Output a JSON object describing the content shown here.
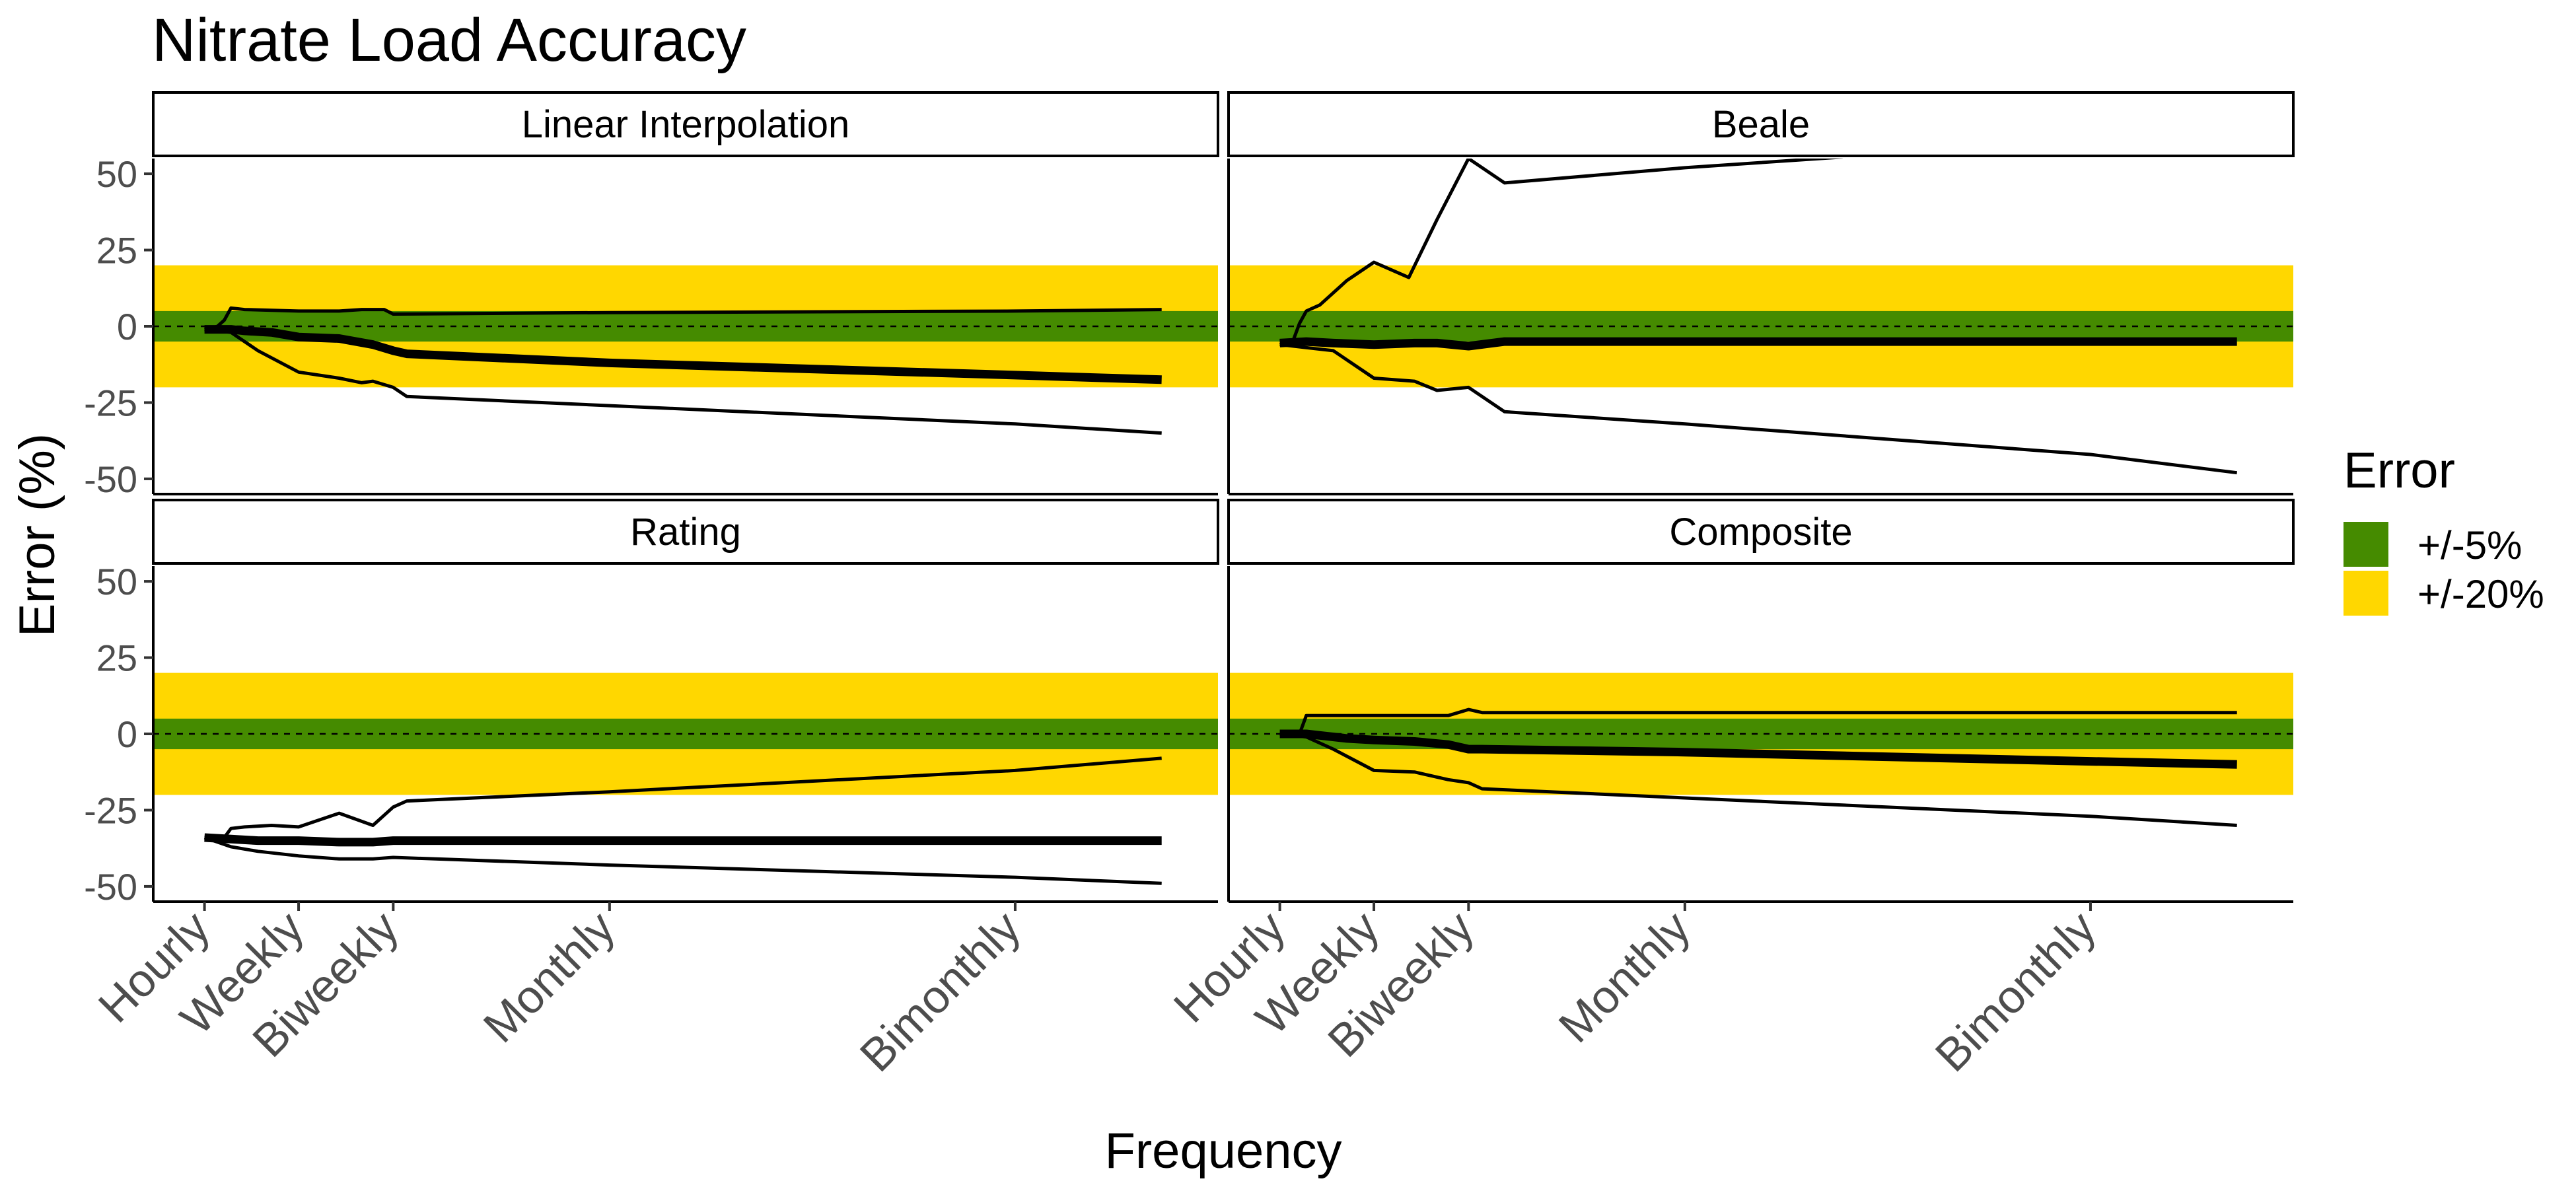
{
  "title": "Nitrate Load Accuracy",
  "xlabel": "Frequency",
  "ylabel": "Error (%)",
  "legend": {
    "title": "Error",
    "items": [
      {
        "label": "+/-5%",
        "color": "#458B00"
      },
      {
        "label": "+/-20%",
        "color": "#FFD700"
      }
    ]
  },
  "chart_data": {
    "type": "line",
    "facets": [
      "Linear Interpolation",
      "Beale",
      "Rating",
      "Composite"
    ],
    "x_ticks": [
      {
        "label": "Hourly",
        "hours": 1
      },
      {
        "label": "Weekly",
        "hours": 168
      },
      {
        "label": "Biweekly",
        "hours": 336
      },
      {
        "label": "Monthly",
        "hours": 720
      },
      {
        "label": "Bimonthly",
        "hours": 1440
      }
    ],
    "xlim": [
      -90,
      1800
    ],
    "ylim": [
      -55,
      55
    ],
    "y_ticks": [
      -50,
      -25,
      0,
      25,
      50
    ],
    "bands": [
      {
        "name": "+/-20%",
        "lower": -20,
        "upper": 20,
        "color": "#FFD700"
      },
      {
        "name": "+/-5%",
        "lower": -5,
        "upper": 5,
        "color": "#458B00"
      }
    ],
    "reference_line": 0,
    "panels": [
      {
        "facet": "Linear Interpolation",
        "series": [
          {
            "role": "upper",
            "points": [
              [
                1,
                -1
              ],
              [
                24,
                0
              ],
              [
                36,
                2
              ],
              [
                48,
                6
              ],
              [
                72,
                5.5
              ],
              [
                168,
                5
              ],
              [
                240,
                5
              ],
              [
                280,
                5.5
              ],
              [
                320,
                5.5
              ],
              [
                336,
                4
              ],
              [
                720,
                4.5
              ],
              [
                1440,
                5
              ],
              [
                1700,
                5.5
              ]
            ]
          },
          {
            "role": "median",
            "points": [
              [
                1,
                -1
              ],
              [
                48,
                -1
              ],
              [
                72,
                -1.5
              ],
              [
                120,
                -2
              ],
              [
                168,
                -3.5
              ],
              [
                240,
                -4
              ],
              [
                300,
                -6
              ],
              [
                336,
                -8
              ],
              [
                360,
                -9
              ],
              [
                720,
                -12
              ],
              [
                1440,
                -16
              ],
              [
                1700,
                -17.5
              ]
            ]
          },
          {
            "role": "lower",
            "points": [
              [
                1,
                -1
              ],
              [
                48,
                -2
              ],
              [
                96,
                -8
              ],
              [
                168,
                -15
              ],
              [
                240,
                -17
              ],
              [
                280,
                -18.5
              ],
              [
                300,
                -18
              ],
              [
                336,
                -20
              ],
              [
                360,
                -23
              ],
              [
                720,
                -26
              ],
              [
                1440,
                -32
              ],
              [
                1700,
                -35
              ]
            ]
          }
        ]
      },
      {
        "facet": "Beale",
        "series": [
          {
            "role": "upper",
            "points": [
              [
                1,
                -6
              ],
              [
                24,
                -5
              ],
              [
                36,
                1
              ],
              [
                48,
                5
              ],
              [
                72,
                7
              ],
              [
                120,
                15
              ],
              [
                168,
                21
              ],
              [
                230,
                16
              ],
              [
                280,
                35
              ],
              [
                336,
                55
              ],
              [
                400,
                47
              ],
              [
                720,
                52
              ],
              [
                1000,
                55.5
              ]
            ]
          },
          {
            "role": "median",
            "points": [
              [
                1,
                -5.5
              ],
              [
                48,
                -5
              ],
              [
                96,
                -5.5
              ],
              [
                168,
                -6
              ],
              [
                240,
                -5.5
              ],
              [
                280,
                -5.5
              ],
              [
                336,
                -6.5
              ],
              [
                400,
                -5
              ],
              [
                720,
                -5
              ],
              [
                1440,
                -5
              ],
              [
                1700,
                -5
              ]
            ]
          },
          {
            "role": "lower",
            "points": [
              [
                1,
                -6
              ],
              [
                48,
                -7
              ],
              [
                96,
                -8
              ],
              [
                168,
                -17
              ],
              [
                240,
                -18
              ],
              [
                280,
                -21
              ],
              [
                336,
                -20
              ],
              [
                400,
                -28
              ],
              [
                720,
                -32
              ],
              [
                1440,
                -42
              ],
              [
                1700,
                -48
              ]
            ]
          }
        ]
      },
      {
        "facet": "Rating",
        "series": [
          {
            "role": "upper",
            "points": [
              [
                1,
                -34
              ],
              [
                36,
                -34
              ],
              [
                48,
                -31
              ],
              [
                72,
                -30.5
              ],
              [
                120,
                -30
              ],
              [
                168,
                -30.5
              ],
              [
                240,
                -26
              ],
              [
                300,
                -30
              ],
              [
                336,
                -24
              ],
              [
                360,
                -22
              ],
              [
                720,
                -19
              ],
              [
                1440,
                -12
              ],
              [
                1700,
                -8
              ]
            ]
          },
          {
            "role": "median",
            "points": [
              [
                1,
                -34
              ],
              [
                48,
                -34.5
              ],
              [
                96,
                -35
              ],
              [
                168,
                -35
              ],
              [
                240,
                -35.5
              ],
              [
                300,
                -35.5
              ],
              [
                336,
                -35
              ],
              [
                720,
                -35
              ],
              [
                1440,
                -35
              ],
              [
                1700,
                -35
              ]
            ]
          },
          {
            "role": "lower",
            "points": [
              [
                1,
                -34
              ],
              [
                48,
                -37
              ],
              [
                96,
                -38.5
              ],
              [
                168,
                -40
              ],
              [
                240,
                -41
              ],
              [
                300,
                -41
              ],
              [
                336,
                -40.5
              ],
              [
                720,
                -43
              ],
              [
                1440,
                -47
              ],
              [
                1700,
                -49
              ]
            ]
          }
        ]
      },
      {
        "facet": "Composite",
        "series": [
          {
            "role": "upper",
            "points": [
              [
                1,
                0
              ],
              [
                36,
                0
              ],
              [
                48,
                6
              ],
              [
                120,
                6
              ],
              [
                168,
                6
              ],
              [
                240,
                6
              ],
              [
                300,
                6
              ],
              [
                336,
                8
              ],
              [
                360,
                7
              ],
              [
                720,
                7
              ],
              [
                1440,
                7
              ],
              [
                1700,
                7
              ]
            ]
          },
          {
            "role": "median",
            "points": [
              [
                1,
                0
              ],
              [
                48,
                0
              ],
              [
                72,
                -0.5
              ],
              [
                120,
                -1.5
              ],
              [
                168,
                -2
              ],
              [
                240,
                -2.5
              ],
              [
                300,
                -3.5
              ],
              [
                336,
                -5
              ],
              [
                360,
                -5
              ],
              [
                720,
                -6
              ],
              [
                1440,
                -9
              ],
              [
                1700,
                -10
              ]
            ]
          },
          {
            "role": "lower",
            "points": [
              [
                1,
                0
              ],
              [
                48,
                -1
              ],
              [
                96,
                -5
              ],
              [
                168,
                -12
              ],
              [
                240,
                -12.5
              ],
              [
                300,
                -15
              ],
              [
                336,
                -16
              ],
              [
                360,
                -18
              ],
              [
                720,
                -21
              ],
              [
                1440,
                -27
              ],
              [
                1700,
                -30
              ]
            ]
          }
        ]
      }
    ]
  }
}
